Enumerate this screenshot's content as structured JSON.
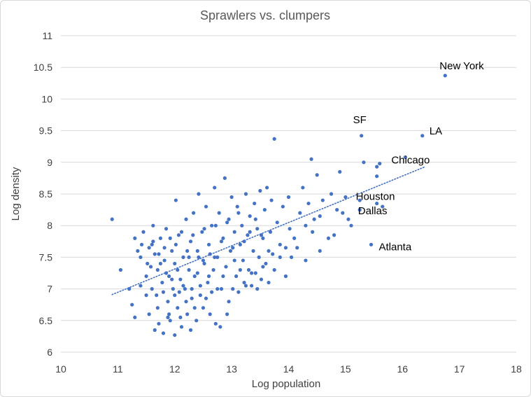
{
  "chart_data": {
    "type": "scatter",
    "title": "Sprawlers vs. clumpers",
    "xlabel": "Log population",
    "ylabel": "Log density",
    "xlim": [
      10,
      18
    ],
    "ylim": [
      6,
      11
    ],
    "xticks": [
      "10",
      "11",
      "12",
      "13",
      "14",
      "15",
      "16",
      "17",
      "18"
    ],
    "yticks": [
      "6",
      "6.5",
      "7",
      "7.5",
      "8",
      "8.5",
      "9",
      "9.5",
      "10",
      "10.5",
      "11"
    ],
    "grid": "horizontal",
    "legend": "none",
    "point_color": "#4472c4",
    "trendline": {
      "type": "linear",
      "x": [
        10.9,
        16.4
      ],
      "y": [
        6.91,
        8.93
      ],
      "style": "dotted",
      "color": "#4472c4"
    },
    "labeled_points": [
      {
        "label": "New York",
        "x": 16.75,
        "y": 10.37
      },
      {
        "label": "SF",
        "x": 15.28,
        "y": 9.42
      },
      {
        "label": "LA",
        "x": 16.35,
        "y": 9.42
      },
      {
        "label": "Chicago",
        "x": 16.05,
        "y": 9.08
      },
      {
        "label": "Houston",
        "x": 15.55,
        "y": 8.35
      },
      {
        "label": "Dallas",
        "x": 15.65,
        "y": 8.3
      },
      {
        "label": "Atlanta",
        "x": 15.45,
        "y": 7.7
      }
    ],
    "points": [
      [
        10.9,
        8.1
      ],
      [
        11.05,
        7.3
      ],
      [
        11.2,
        7.0
      ],
      [
        11.25,
        6.75
      ],
      [
        11.3,
        6.55
      ],
      [
        11.35,
        7.6
      ],
      [
        11.4,
        7.5
      ],
      [
        11.45,
        7.9
      ],
      [
        11.5,
        7.2
      ],
      [
        11.55,
        6.6
      ],
      [
        11.58,
        7.35
      ],
      [
        11.6,
        7.7
      ],
      [
        11.62,
        8.0
      ],
      [
        11.65,
        7.55
      ],
      [
        11.68,
        6.9
      ],
      [
        11.7,
        7.3
      ],
      [
        11.72,
        6.45
      ],
      [
        11.75,
        7.8
      ],
      [
        11.78,
        7.1
      ],
      [
        11.8,
        6.3
      ],
      [
        11.82,
        7.45
      ],
      [
        11.85,
        7.95
      ],
      [
        11.88,
        6.8
      ],
      [
        11.9,
        7.2
      ],
      [
        11.92,
        6.5
      ],
      [
        11.95,
        7.6
      ],
      [
        11.97,
        7.0
      ],
      [
        12.0,
        6.27
      ],
      [
        12.0,
        7.4
      ],
      [
        12.02,
        8.4
      ],
      [
        12.05,
        6.7
      ],
      [
        12.07,
        7.85
      ],
      [
        12.1,
        7.15
      ],
      [
        12.12,
        6.4
      ],
      [
        12.15,
        7.5
      ],
      [
        12.18,
        7.0
      ],
      [
        12.2,
        8.1
      ],
      [
        12.22,
        6.6
      ],
      [
        12.25,
        7.3
      ],
      [
        12.28,
        7.75
      ],
      [
        12.3,
        6.85
      ],
      [
        12.33,
        8.2
      ],
      [
        12.35,
        7.2
      ],
      [
        12.38,
        6.5
      ],
      [
        12.4,
        7.6
      ],
      [
        12.42,
        8.5
      ],
      [
        12.45,
        7.05
      ],
      [
        12.48,
        7.9
      ],
      [
        12.5,
        6.7
      ],
      [
        12.52,
        7.4
      ],
      [
        12.55,
        8.3
      ],
      [
        12.58,
        7.1
      ],
      [
        12.6,
        7.7
      ],
      [
        12.62,
        6.6
      ],
      [
        12.65,
        8.0
      ],
      [
        12.68,
        7.3
      ],
      [
        12.7,
        8.6
      ],
      [
        12.72,
        6.45
      ],
      [
        12.75,
        7.5
      ],
      [
        12.78,
        8.2
      ],
      [
        12.8,
        6.4
      ],
      [
        12.82,
        7.0
      ],
      [
        12.85,
        7.8
      ],
      [
        12.88,
        8.75
      ],
      [
        12.9,
        7.35
      ],
      [
        12.92,
        6.6
      ],
      [
        12.95,
        8.1
      ],
      [
        12.98,
        7.6
      ],
      [
        13.0,
        8.45
      ],
      [
        13.02,
        7.0
      ],
      [
        13.05,
        7.9
      ],
      [
        13.08,
        7.2
      ],
      [
        13.1,
        8.3
      ],
      [
        13.12,
        6.95
      ],
      [
        13.15,
        7.7
      ],
      [
        13.18,
        8.0
      ],
      [
        13.2,
        7.45
      ],
      [
        13.22,
        7.1
      ],
      [
        13.25,
        8.5
      ],
      [
        13.28,
        7.85
      ],
      [
        13.3,
        7.3
      ],
      [
        13.32,
        8.15
      ],
      [
        13.35,
        7.05
      ],
      [
        13.38,
        7.6
      ],
      [
        13.4,
        8.35
      ],
      [
        13.42,
        7.25
      ],
      [
        13.45,
        7.95
      ],
      [
        13.48,
        7.5
      ],
      [
        13.5,
        8.55
      ],
      [
        13.52,
        7.15
      ],
      [
        13.55,
        7.8
      ],
      [
        13.58,
        8.25
      ],
      [
        13.6,
        7.4
      ],
      [
        13.62,
        8.6
      ],
      [
        13.65,
        7.1
      ],
      [
        13.68,
        7.9
      ],
      [
        13.7,
        8.4
      ],
      [
        13.72,
        7.55
      ],
      [
        13.75,
        9.37
      ],
      [
        13.8,
        8.05
      ],
      [
        13.85,
        7.7
      ],
      [
        13.9,
        8.3
      ],
      [
        13.95,
        7.2
      ],
      [
        14.0,
        8.45
      ],
      [
        14.02,
        7.95
      ],
      [
        14.05,
        7.5
      ],
      [
        14.1,
        7.8
      ],
      [
        14.2,
        8.2
      ],
      [
        14.25,
        8.6
      ],
      [
        14.3,
        7.45
      ],
      [
        14.35,
        8.35
      ],
      [
        14.4,
        9.05
      ],
      [
        14.42,
        7.9
      ],
      [
        14.45,
        8.1
      ],
      [
        14.5,
        8.8
      ],
      [
        14.55,
        7.6
      ],
      [
        14.6,
        8.4
      ],
      [
        14.7,
        7.8
      ],
      [
        14.75,
        8.5
      ],
      [
        14.8,
        7.85
      ],
      [
        14.85,
        8.25
      ],
      [
        14.9,
        8.85
      ],
      [
        15.0,
        8.45
      ],
      [
        15.05,
        8.1
      ],
      [
        15.25,
        8.4
      ],
      [
        15.25,
        8.25
      ],
      [
        15.32,
        9.0
      ],
      [
        15.55,
        8.78
      ],
      [
        15.6,
        8.98
      ],
      [
        15.55,
        8.93
      ],
      [
        11.4,
        7.05
      ],
      [
        11.5,
        6.9
      ],
      [
        11.55,
        7.65
      ],
      [
        11.6,
        7.0
      ],
      [
        11.7,
        6.7
      ],
      [
        11.75,
        7.4
      ],
      [
        11.8,
        6.95
      ],
      [
        11.85,
        7.25
      ],
      [
        11.9,
        6.6
      ],
      [
        11.95,
        7.15
      ],
      [
        12.0,
        6.9
      ],
      [
        12.05,
        7.3
      ],
      [
        12.1,
        6.55
      ],
      [
        12.15,
        7.05
      ],
      [
        12.2,
        6.8
      ],
      [
        12.25,
        7.5
      ],
      [
        12.3,
        7.0
      ],
      [
        12.35,
        6.7
      ],
      [
        12.4,
        7.25
      ],
      [
        12.45,
        6.9
      ],
      [
        12.5,
        7.45
      ],
      [
        12.55,
        6.85
      ],
      [
        12.6,
        7.2
      ],
      [
        12.65,
        6.95
      ],
      [
        12.7,
        7.5
      ],
      [
        12.75,
        7.0
      ],
      [
        12.85,
        7.2
      ],
      [
        12.95,
        6.8
      ],
      [
        13.05,
        7.45
      ],
      [
        13.15,
        7.3
      ],
      [
        13.25,
        7.05
      ],
      [
        13.35,
        7.25
      ],
      [
        13.45,
        7.0
      ],
      [
        13.55,
        7.35
      ],
      [
        13.65,
        7.6
      ],
      [
        13.75,
        7.3
      ],
      [
        13.85,
        7.5
      ],
      [
        13.95,
        7.65
      ],
      [
        11.65,
        6.35
      ],
      [
        11.88,
        6.55
      ],
      [
        12.08,
        6.95
      ],
      [
        12.28,
        6.35
      ],
      [
        11.3,
        7.8
      ],
      [
        11.42,
        7.7
      ],
      [
        11.52,
        7.4
      ],
      [
        11.62,
        7.75
      ],
      [
        11.72,
        7.55
      ],
      [
        11.82,
        7.65
      ],
      [
        11.92,
        7.8
      ],
      [
        12.02,
        7.7
      ],
      [
        12.12,
        7.9
      ],
      [
        12.22,
        7.6
      ],
      [
        12.32,
        7.85
      ],
      [
        12.42,
        7.5
      ],
      [
        12.52,
        7.95
      ],
      [
        12.62,
        7.55
      ],
      [
        12.72,
        8.0
      ],
      [
        12.82,
        7.75
      ],
      [
        12.92,
        8.05
      ],
      [
        13.02,
        7.65
      ],
      [
        13.12,
        8.2
      ],
      [
        13.22,
        7.75
      ],
      [
        13.32,
        7.9
      ],
      [
        13.42,
        8.1
      ],
      [
        13.52,
        7.85
      ],
      [
        14.15,
        7.65
      ],
      [
        14.3,
        8.0
      ],
      [
        14.55,
        8.15
      ],
      [
        14.95,
        8.2
      ],
      [
        15.1,
        8.0
      ]
    ]
  }
}
